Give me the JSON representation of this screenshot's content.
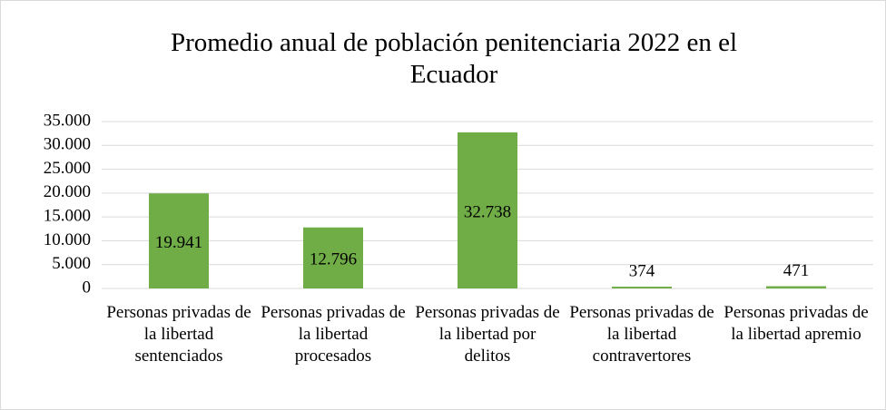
{
  "chart_data": {
    "type": "bar",
    "title": "Promedio anual de población penitenciaria 2022 en el Ecuador",
    "categories": [
      "Personas privadas de la libertad sentenciados",
      "Personas privadas de la libertad procesados",
      "Personas privadas de la libertad por delitos",
      "Personas privadas de la libertad contravertores",
      "Personas privadas de la libertad apremio"
    ],
    "values": [
      19941,
      12796,
      32738,
      374,
      471
    ],
    "value_labels": [
      "19.941",
      "12.796",
      "32.738",
      "374",
      "471"
    ],
    "color": "#70ad47",
    "ylim": [
      0,
      35000
    ],
    "yticks": [
      0,
      {
        "value": 5000,
        "label": "5.000"
      },
      {
        "value": 10000,
        "label": "10.000"
      },
      {
        "value": 15000,
        "label": "15.000"
      },
      {
        "value": 20000,
        "label": "20.000"
      },
      {
        "value": 25000,
        "label": "25.000"
      },
      {
        "value": 30000,
        "label": "30.000"
      },
      {
        "value": 35000,
        "label": "35.000"
      }
    ],
    "grid": true
  }
}
